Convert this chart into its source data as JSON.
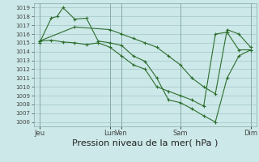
{
  "background_color": "#cce8e8",
  "grid_color": "#aacccc",
  "line_color": "#2d6e2d",
  "xlabel": "Pression niveau de la mer( hPa )",
  "xlabel_fontsize": 8,
  "ylim": [
    1005.5,
    1019.5
  ],
  "yticks": [
    1006,
    1007,
    1008,
    1009,
    1010,
    1011,
    1012,
    1013,
    1014,
    1015,
    1016,
    1017,
    1018,
    1019
  ],
  "xlim": [
    0,
    19
  ],
  "xtick_positions": [
    0.5,
    6.5,
    7.5,
    12.5,
    18.5
  ],
  "xtick_labels": [
    "Jeu",
    "Lun",
    "Ven",
    "Sam",
    "Dim"
  ],
  "line1_x": [
    0.5,
    1.5,
    2.0,
    2.5,
    3.5,
    4.5,
    5.5,
    6.5,
    7.5,
    8.5,
    9.5,
    10.5,
    11.5,
    12.5,
    13.5,
    14.5,
    15.5,
    16.5,
    17.5,
    18.5
  ],
  "line1_y": [
    1015.0,
    1017.8,
    1018.0,
    1019.0,
    1017.7,
    1017.8,
    1015.2,
    1015.0,
    1014.7,
    1013.5,
    1012.9,
    1011.0,
    1008.5,
    1008.2,
    1007.5,
    1006.7,
    1006.0,
    1011.0,
    1013.5,
    1014.2
  ],
  "line2_x": [
    0.5,
    1.5,
    2.5,
    3.5,
    4.5,
    5.5,
    6.5,
    7.5,
    8.5,
    9.5,
    10.5,
    11.5,
    12.5,
    13.5,
    14.5,
    15.5,
    16.5,
    17.5,
    18.5
  ],
  "line2_y": [
    1015.2,
    1015.3,
    1015.1,
    1015.0,
    1014.8,
    1015.0,
    1014.5,
    1013.5,
    1012.5,
    1012.0,
    1010.0,
    1009.5,
    1009.0,
    1008.5,
    1007.8,
    1016.0,
    1016.2,
    1014.2,
    1014.2
  ],
  "line3_x": [
    0.5,
    3.5,
    6.5,
    7.5,
    8.5,
    9.5,
    10.5,
    11.5,
    12.5,
    13.5,
    14.5,
    15.5,
    16.5,
    17.5,
    18.5
  ],
  "line3_y": [
    1015.2,
    1016.8,
    1016.5,
    1016.0,
    1015.5,
    1015.0,
    1014.5,
    1013.5,
    1012.5,
    1011.0,
    1010.0,
    1009.2,
    1016.5,
    1016.0,
    1014.5
  ]
}
